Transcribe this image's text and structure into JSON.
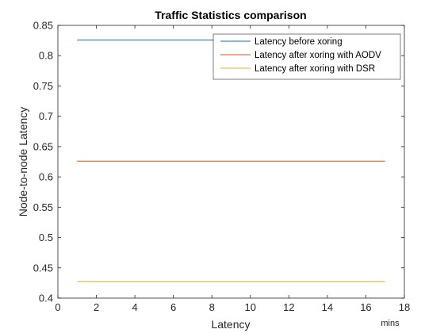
{
  "chart_data": {
    "type": "line",
    "title": "Traffic Statistics comparison",
    "xlabel": "Latency",
    "ylabel": "Node-to-node Latency",
    "x_unit": "mins",
    "xlim": [
      0,
      18
    ],
    "ylim": [
      0.4,
      0.85
    ],
    "xticks": [
      0,
      2,
      4,
      6,
      8,
      10,
      12,
      14,
      16,
      18
    ],
    "yticks": [
      0.4,
      0.45,
      0.5,
      0.55,
      0.6,
      0.65,
      0.7,
      0.75,
      0.8,
      0.85
    ],
    "ytick_labels": [
      "0.4",
      "0.45",
      "0.5",
      "0.55",
      "0.6",
      "0.65",
      "0.7",
      "0.75",
      "0.8",
      "0.85"
    ],
    "grid": false,
    "legend_position": "top-right",
    "series": [
      {
        "name": "Latency before xoring",
        "color": "#0072BD",
        "x": [
          1,
          17
        ],
        "y": [
          0.826,
          0.826
        ]
      },
      {
        "name": "Latency after xoring with AODV",
        "color": "#D95319",
        "x": [
          1,
          17
        ],
        "y": [
          0.626,
          0.626
        ]
      },
      {
        "name": "Latency after xoring with DSR",
        "color": "#EDB120",
        "x": [
          1,
          17
        ],
        "y": [
          0.427,
          0.427
        ]
      }
    ]
  }
}
